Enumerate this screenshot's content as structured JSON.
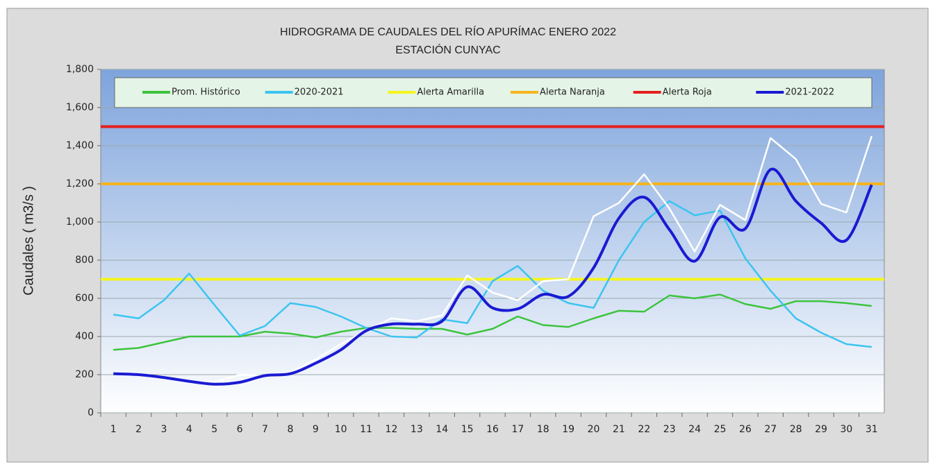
{
  "chart_data": {
    "type": "line",
    "title": "HIDROGRAMA DE CAUDALES DEL RÍO APURÍMAC ENERO 2022",
    "subtitle": "ESTACIÓN CUNYAC",
    "ylabel": "Caudales ( m3/s )",
    "categories": [
      "1",
      "2",
      "3",
      "4",
      "5",
      "6",
      "7",
      "8",
      "9",
      "10",
      "11",
      "12",
      "13",
      "14",
      "15",
      "16",
      "17",
      "18",
      "19",
      "20",
      "21",
      "22",
      "23",
      "24",
      "25",
      "26",
      "27",
      "28",
      "29",
      "30",
      "31"
    ],
    "series": [
      {
        "name": "Prom. Histórico",
        "color": "#3cc43c",
        "values": [
          330,
          340,
          370,
          400,
          400,
          400,
          425,
          415,
          395,
          425,
          445,
          445,
          440,
          440,
          410,
          440,
          505,
          460,
          450,
          495,
          535,
          530,
          615,
          600,
          620,
          570,
          545,
          585,
          585,
          575,
          560
        ]
      },
      {
        "name": "2020-2021",
        "color": "#3cc4f0",
        "values": [
          515,
          495,
          590,
          730,
          565,
          405,
          455,
          575,
          555,
          505,
          445,
          400,
          395,
          490,
          470,
          690,
          770,
          640,
          575,
          550,
          800,
          1000,
          1110,
          1035,
          1060,
          810,
          640,
          495,
          420,
          360,
          345
        ]
      },
      {
        "name": "Alerta Amarilla",
        "color": "#f5f51e",
        "level": 700
      },
      {
        "name": "Alerta Naranja",
        "color": "#f5b41e",
        "level": 1200
      },
      {
        "name": "Alerta Roja",
        "color": "#e61e1e",
        "level": 1500
      },
      {
        "color": "#ffffff",
        "values": [
          205,
          200,
          185,
          165,
          160,
          200,
          195,
          210,
          280,
          360,
          430,
          495,
          480,
          510,
          720,
          630,
          590,
          690,
          700,
          1030,
          1100,
          1250,
          1070,
          845,
          1090,
          1010,
          1440,
          1330,
          1095,
          1050,
          1450
        ]
      },
      {
        "name": "2021-2022",
        "color": "#1a1ad2",
        "smooth": true,
        "values": [
          205,
          200,
          185,
          165,
          150,
          160,
          195,
          205,
          260,
          330,
          430,
          465,
          465,
          480,
          660,
          550,
          545,
          620,
          610,
          760,
          1020,
          1130,
          960,
          795,
          1025,
          965,
          1275,
          1110,
          995,
          905,
          1195
        ]
      }
    ],
    "ylim": [
      0,
      1800
    ],
    "yticks": [
      0,
      200,
      400,
      600,
      800,
      {
        "value": 1000,
        "label": "1,000"
      },
      {
        "value": 1200,
        "label": "1,200"
      },
      {
        "value": 1400,
        "label": "1,400"
      },
      {
        "value": 1600,
        "label": "1,600"
      },
      {
        "value": 1800,
        "label": "1,800"
      }
    ],
    "grid": true
  }
}
